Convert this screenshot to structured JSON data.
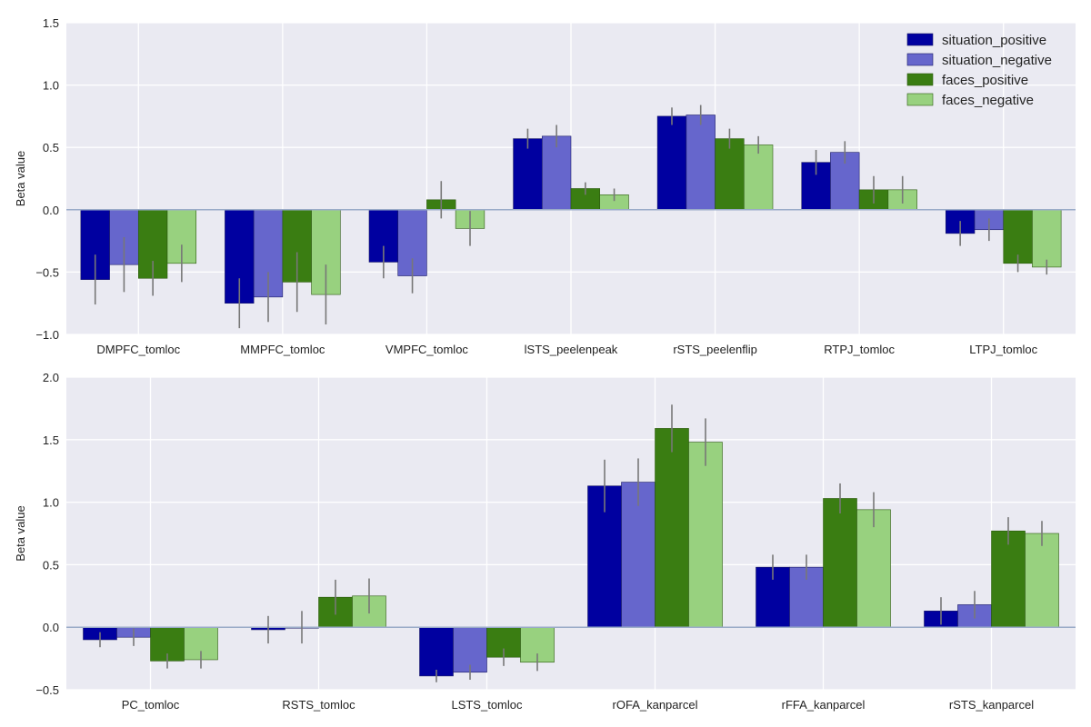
{
  "legend": {
    "placement": "top-right",
    "entries": [
      "situation_positive",
      "situation_negative",
      "faces_positive",
      "faces_negative"
    ]
  },
  "colors": {
    "series": [
      "#0000a0",
      "#6666cc",
      "#3a7d12",
      "#98d17f"
    ],
    "plot_background": "#eaeaf2",
    "grid": "#ffffff",
    "zero_line": "#9aabc8",
    "error_bar": "#777777"
  },
  "chart_data": [
    {
      "type": "bar",
      "ylabel": "Beta value",
      "ylim": [
        -1.0,
        1.5
      ],
      "yticks": [
        -1.0,
        -0.5,
        0.0,
        0.5,
        1.0,
        1.5
      ],
      "ytick_labels": [
        "−1.0",
        "−0.5",
        "0.0",
        "0.5",
        "1.0",
        "1.5"
      ],
      "grid": true,
      "categories": [
        "DMPFC_tomloc",
        "MMPFC_tomloc",
        "VMPFC_tomloc",
        "lSTS_peelenpeak",
        "rSTS_peelenflip",
        "RTPJ_tomloc",
        "LTPJ_tomloc"
      ],
      "series": [
        {
          "name": "situation_positive",
          "values": [
            -0.56,
            -0.75,
            -0.42,
            0.57,
            0.75,
            0.38,
            -0.19
          ],
          "errors": [
            0.2,
            0.2,
            0.13,
            0.08,
            0.07,
            0.1,
            0.1
          ]
        },
        {
          "name": "situation_negative",
          "values": [
            -0.44,
            -0.7,
            -0.53,
            0.59,
            0.76,
            0.46,
            -0.16
          ],
          "errors": [
            0.22,
            0.2,
            0.14,
            0.09,
            0.08,
            0.09,
            0.09
          ]
        },
        {
          "name": "faces_positive",
          "values": [
            -0.55,
            -0.58,
            0.08,
            0.17,
            0.57,
            0.16,
            -0.43
          ],
          "errors": [
            0.14,
            0.24,
            0.15,
            0.05,
            0.08,
            0.11,
            0.07
          ]
        },
        {
          "name": "faces_negative",
          "values": [
            -0.43,
            -0.68,
            -0.15,
            0.12,
            0.52,
            0.16,
            -0.46
          ],
          "errors": [
            0.15,
            0.24,
            0.14,
            0.05,
            0.07,
            0.11,
            0.06
          ]
        }
      ]
    },
    {
      "type": "bar",
      "ylabel": "Beta value",
      "ylim": [
        -0.5,
        2.0
      ],
      "yticks": [
        -0.5,
        0.0,
        0.5,
        1.0,
        1.5,
        2.0
      ],
      "ytick_labels": [
        "−0.5",
        "0.0",
        "0.5",
        "1.0",
        "1.5",
        "2.0"
      ],
      "grid": true,
      "categories": [
        "PC_tomloc",
        "RSTS_tomloc",
        "LSTS_tomloc",
        "rOFA_kanparcel",
        "rFFA_kanparcel",
        "rSTS_kanparcel"
      ],
      "series": [
        {
          "name": "situation_positive",
          "values": [
            -0.1,
            -0.02,
            -0.39,
            1.13,
            0.48,
            0.13
          ],
          "errors": [
            0.06,
            0.11,
            0.05,
            0.21,
            0.1,
            0.11
          ]
        },
        {
          "name": "situation_negative",
          "values": [
            -0.08,
            0.0,
            -0.36,
            1.16,
            0.48,
            0.18
          ],
          "errors": [
            0.07,
            0.13,
            0.06,
            0.19,
            0.1,
            0.11
          ]
        },
        {
          "name": "faces_positive",
          "values": [
            -0.27,
            0.24,
            -0.24,
            1.59,
            1.03,
            0.77
          ],
          "errors": [
            0.06,
            0.14,
            0.07,
            0.19,
            0.12,
            0.11
          ]
        },
        {
          "name": "faces_negative",
          "values": [
            -0.26,
            0.25,
            -0.28,
            1.48,
            0.94,
            0.75
          ],
          "errors": [
            0.07,
            0.14,
            0.07,
            0.19,
            0.14,
            0.1
          ]
        }
      ]
    }
  ]
}
